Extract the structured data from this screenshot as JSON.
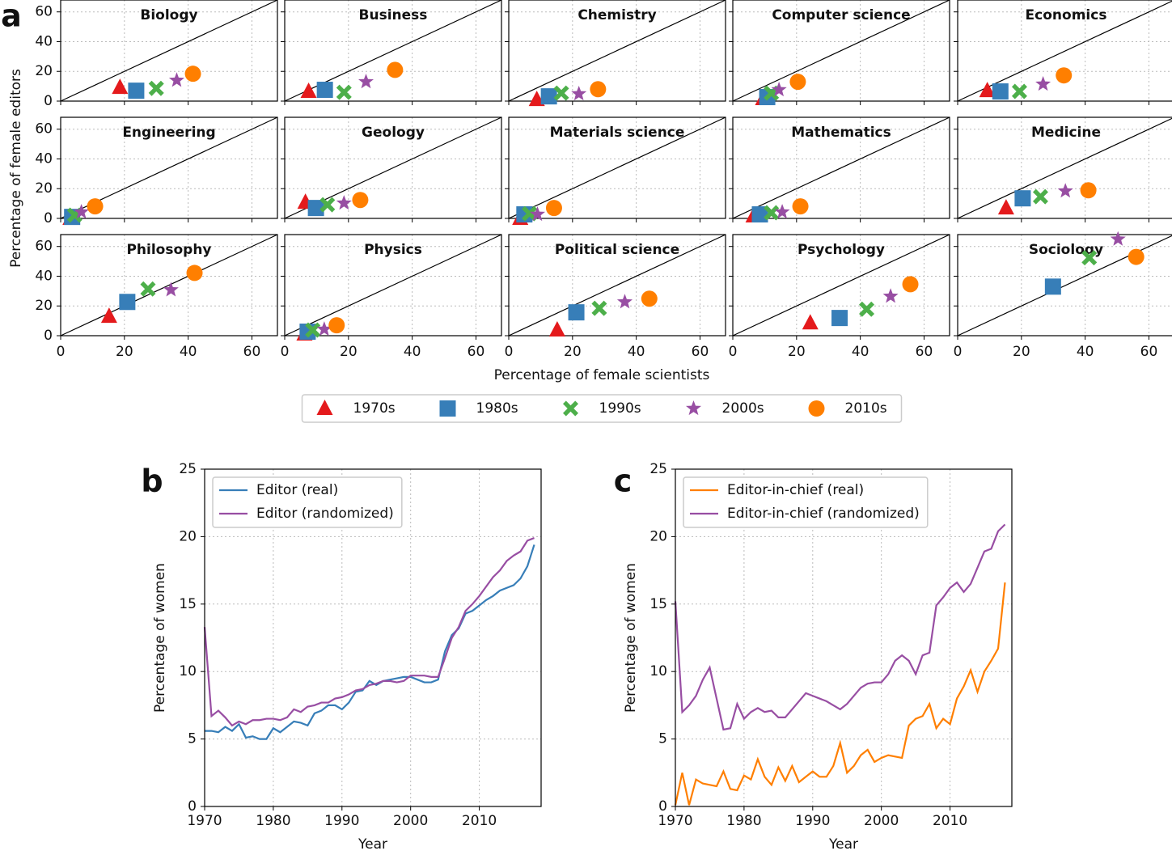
{
  "chart_data": [
    {
      "type": "scatter-grid",
      "label": "a",
      "xlabel": "Percentage of female scientists",
      "ylabel": "Percentage of female editors",
      "xlim": [
        0,
        68
      ],
      "ylim": [
        0,
        68
      ],
      "xticks": [
        0,
        20,
        40,
        60
      ],
      "yticks": [
        0,
        20,
        40,
        60
      ],
      "grid": true,
      "diagonal": true,
      "legend": "lower center",
      "series": [
        {
          "name": "1970s",
          "color": "#e41a1c",
          "marker": "triangle"
        },
        {
          "name": "1980s",
          "color": "#377eb8",
          "marker": "square"
        },
        {
          "name": "1990s",
          "color": "#4daf4a",
          "marker": "x"
        },
        {
          "name": "2000s",
          "color": "#984ea3",
          "marker": "star"
        },
        {
          "name": "2010s",
          "color": "#ff7f00",
          "marker": "circle"
        }
      ],
      "panels": [
        {
          "title": "Biology",
          "x": [
            18.6,
            23.7,
            30,
            36.4,
            41.5
          ],
          "y": [
            9.2,
            7,
            8.6,
            14,
            18.4
          ]
        },
        {
          "title": "Business",
          "x": [
            7.5,
            12.6,
            18.6,
            25.5,
            34.6
          ],
          "y": [
            6.5,
            7.6,
            5.9,
            13,
            21
          ]
        },
        {
          "title": "Chemistry",
          "x": [
            8.8,
            12.6,
            16.5,
            22,
            28
          ],
          "y": [
            1,
            3.2,
            5.4,
            4.9,
            8
          ]
        },
        {
          "title": "Computer science",
          "x": [
            9.5,
            10.8,
            12.1,
            14.5,
            20.4
          ],
          "y": [
            1.6,
            2.7,
            5.4,
            7.6,
            13
          ]
        },
        {
          "title": "Economics",
          "x": [
            9.3,
            13.4,
            19.4,
            26.8,
            33.3
          ],
          "y": [
            7,
            6.5,
            6.5,
            11.4,
            17.3
          ]
        },
        {
          "title": "Engineering",
          "x": [
            3.1,
            3.6,
            4.4,
            6.5,
            10.8
          ],
          "y": [
            0,
            1,
            2.2,
            4.3,
            8.1
          ]
        },
        {
          "title": "Geology",
          "x": [
            6.5,
            9.8,
            13.4,
            18.6,
            23.7
          ],
          "y": [
            10.8,
            7,
            9.2,
            10.3,
            12.4
          ]
        },
        {
          "title": "Materials science",
          "x": [
            3.6,
            4.9,
            6.5,
            9,
            14.2
          ],
          "y": [
            0,
            2.7,
            3.2,
            2.7,
            7
          ]
        },
        {
          "title": "Mathematics",
          "x": [
            6.5,
            8.5,
            12.1,
            15.5,
            21.2
          ],
          "y": [
            1.6,
            2.7,
            3.8,
            4.3,
            8.1
          ]
        },
        {
          "title": "Medicine",
          "x": [
            15.2,
            20.4,
            26,
            33.8,
            41
          ],
          "y": [
            7,
            13.5,
            14.6,
            18.4,
            18.9
          ]
        },
        {
          "title": "Philosophy",
          "x": [
            15.2,
            20.9,
            27.4,
            34.6,
            42
          ],
          "y": [
            13,
            22.7,
            31.4,
            30.8,
            42.2
          ]
        },
        {
          "title": "Physics",
          "x": [
            6.2,
            7.2,
            8.8,
            12.4,
            16.3
          ],
          "y": [
            1.1,
            2.7,
            3.8,
            4.3,
            7
          ]
        },
        {
          "title": "Political science",
          "x": [
            15.2,
            21.2,
            28.4,
            36.4,
            44.1
          ],
          "y": [
            3.8,
            15.7,
            18.4,
            22.7,
            24.9
          ]
        },
        {
          "title": "Psychology",
          "x": [
            24.3,
            33.5,
            42,
            49.5,
            55.7
          ],
          "y": [
            8.6,
            11.9,
            17.8,
            26.5,
            34.6
          ]
        },
        {
          "title": "Sociology",
          "x": [
            null,
            29.9,
            41.3,
            50.3,
            56
          ],
          "y": [
            null,
            33,
            52.4,
            64.9,
            53
          ]
        }
      ]
    },
    {
      "type": "line",
      "label": "b",
      "xlabel": "Year",
      "ylabel": "Percentage of women",
      "x": [
        1970,
        1971,
        1972,
        1973,
        1974,
        1975,
        1976,
        1977,
        1978,
        1979,
        1980,
        1981,
        1982,
        1983,
        1984,
        1985,
        1986,
        1987,
        1988,
        1989,
        1990,
        1991,
        1992,
        1993,
        1994,
        1995,
        1996,
        1997,
        1998,
        1999,
        2000,
        2001,
        2002,
        2003,
        2004,
        2005,
        2006,
        2007,
        2008,
        2009,
        2010,
        2011,
        2012,
        2013,
        2014,
        2015,
        2016,
        2017,
        2018
      ],
      "xlim": [
        1970,
        2019
      ],
      "ylim": [
        0,
        25
      ],
      "xticks": [
        1970,
        1980,
        1990,
        2000,
        2010
      ],
      "yticks": [
        0,
        5,
        10,
        15,
        20,
        25
      ],
      "grid": true,
      "legend": "upper left",
      "series": [
        {
          "name": "Editor (real)",
          "color": "#377eb8",
          "values": [
            5.6,
            5.6,
            5.5,
            5.9,
            5.6,
            6.1,
            5.1,
            5.2,
            5.0,
            5.0,
            5.8,
            5.5,
            5.9,
            6.3,
            6.2,
            6.0,
            6.9,
            7.1,
            7.5,
            7.5,
            7.2,
            7.7,
            8.5,
            8.6,
            9.3,
            9.0,
            9.3,
            9.4,
            9.5,
            9.6,
            9.6,
            9.4,
            9.2,
            9.2,
            9.4,
            11.5,
            12.7,
            13.2,
            14.3,
            14.5,
            14.9,
            15.3,
            15.6,
            16.0,
            16.2,
            16.4,
            16.9,
            17.8,
            19.4
          ]
        },
        {
          "name": "Editor (randomized)",
          "color": "#984ea3",
          "values": [
            13.3,
            6.7,
            7.1,
            6.6,
            6.0,
            6.3,
            6.1,
            6.4,
            6.4,
            6.5,
            6.5,
            6.4,
            6.6,
            7.2,
            7.0,
            7.4,
            7.5,
            7.7,
            7.7,
            8.0,
            8.1,
            8.3,
            8.6,
            8.7,
            9.0,
            9.1,
            9.3,
            9.3,
            9.2,
            9.3,
            9.7,
            9.7,
            9.7,
            9.6,
            9.6,
            11.0,
            12.5,
            13.3,
            14.5,
            15.0,
            15.6,
            16.3,
            17.0,
            17.5,
            18.2,
            18.6,
            18.9,
            19.7,
            19.9
          ]
        }
      ]
    },
    {
      "type": "line",
      "label": "c",
      "xlabel": "Year",
      "ylabel": "Percentage of women",
      "x": [
        1970,
        1971,
        1972,
        1973,
        1974,
        1975,
        1976,
        1977,
        1978,
        1979,
        1980,
        1981,
        1982,
        1983,
        1984,
        1985,
        1986,
        1987,
        1988,
        1989,
        1990,
        1991,
        1992,
        1993,
        1994,
        1995,
        1996,
        1997,
        1998,
        1999,
        2000,
        2001,
        2002,
        2003,
        2004,
        2005,
        2006,
        2007,
        2008,
        2009,
        2010,
        2011,
        2012,
        2013,
        2014,
        2015,
        2016,
        2017,
        2018
      ],
      "xlim": [
        1970,
        2019
      ],
      "ylim": [
        0,
        25
      ],
      "xticks": [
        1970,
        1980,
        1990,
        2000,
        2010
      ],
      "yticks": [
        0,
        5,
        10,
        15,
        20,
        25
      ],
      "grid": true,
      "legend": "upper left",
      "series": [
        {
          "name": "Editor-in-chief (real)",
          "color": "#ff7f00",
          "values": [
            0.1,
            2.5,
            0.1,
            2.0,
            1.7,
            1.6,
            1.5,
            2.6,
            1.3,
            1.2,
            2.3,
            2.0,
            3.5,
            2.2,
            1.6,
            2.9,
            1.9,
            3.0,
            1.8,
            2.2,
            2.6,
            2.2,
            2.2,
            3.0,
            4.7,
            2.5,
            3.0,
            3.8,
            4.2,
            3.3,
            3.6,
            3.8,
            3.7,
            3.6,
            6.0,
            6.5,
            6.7,
            7.6,
            5.8,
            6.5,
            6.1,
            8.0,
            8.9,
            10.1,
            8.5,
            10.0,
            10.8,
            11.7,
            16.6
          ]
        },
        {
          "name": "Editor-in-chief (randomized)",
          "color": "#984ea3",
          "values": [
            15.2,
            7.0,
            7.5,
            8.2,
            9.4,
            10.3,
            8.0,
            5.7,
            5.8,
            7.6,
            6.5,
            7.0,
            7.3,
            7.0,
            7.1,
            6.6,
            6.6,
            7.2,
            7.8,
            8.4,
            8.2,
            8.0,
            7.8,
            7.5,
            7.2,
            7.6,
            8.2,
            8.8,
            9.1,
            9.2,
            9.2,
            9.8,
            10.8,
            11.2,
            10.8,
            9.8,
            11.2,
            11.4,
            14.9,
            15.5,
            16.2,
            16.6,
            15.9,
            16.5,
            17.7,
            18.9,
            19.1,
            20.4,
            20.9
          ]
        }
      ]
    }
  ]
}
